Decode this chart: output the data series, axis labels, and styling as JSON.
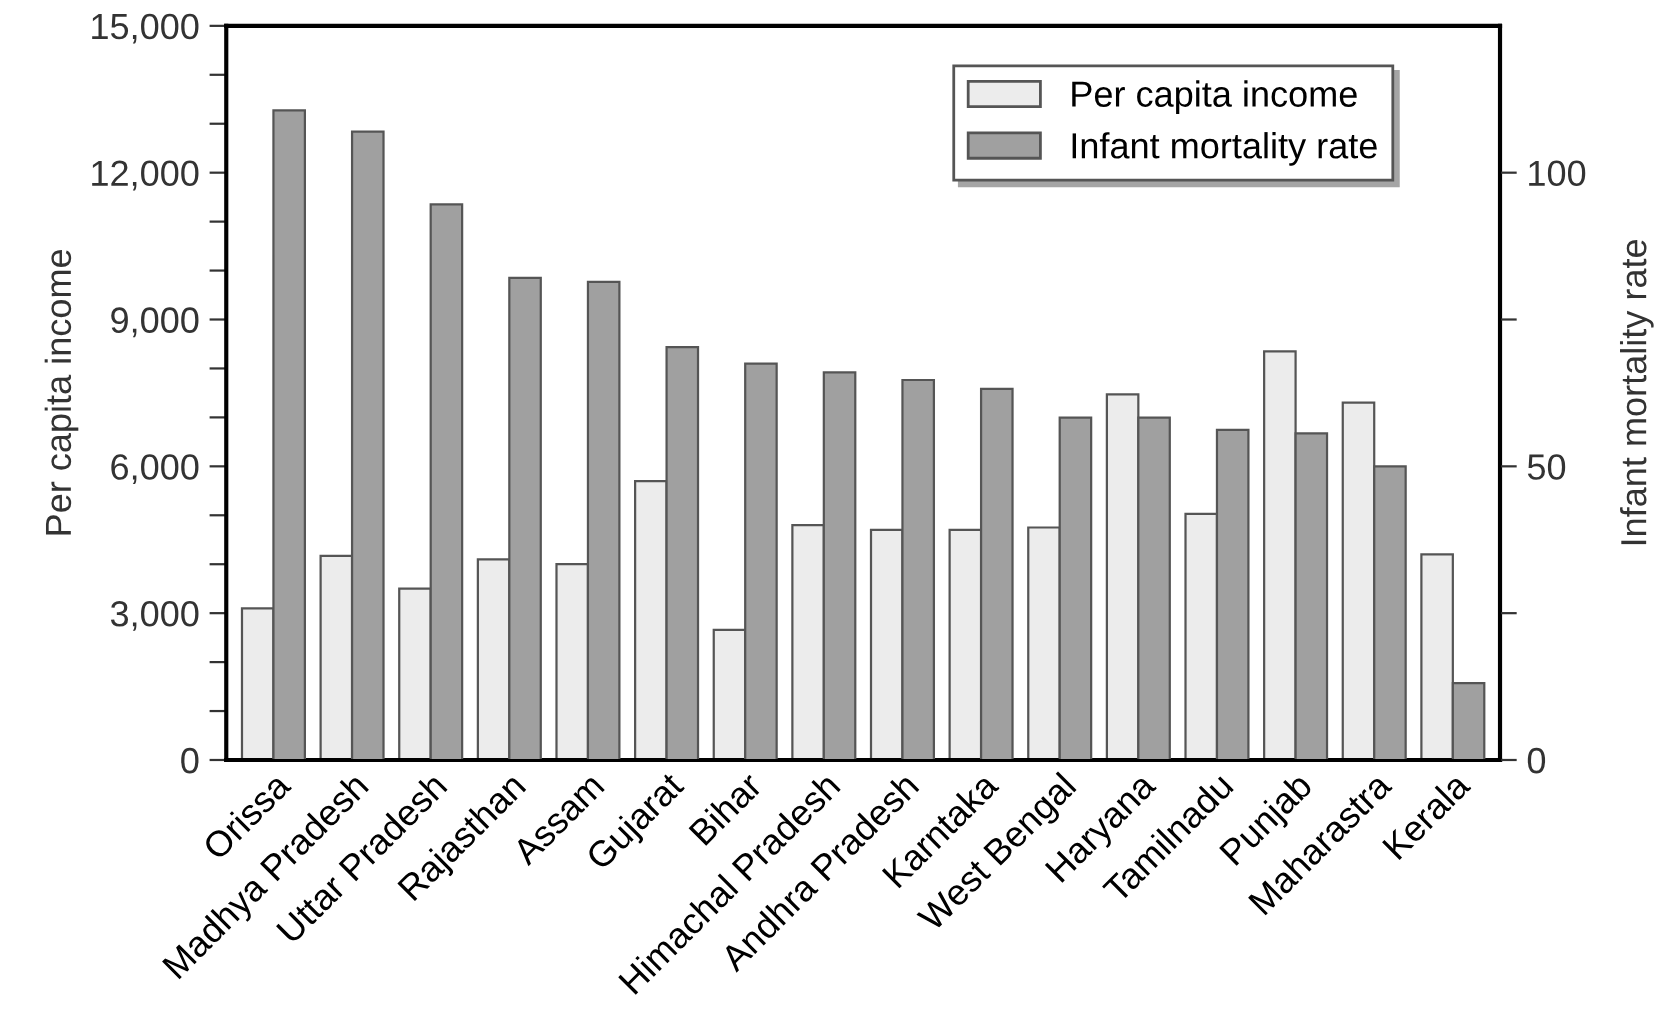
{
  "chart_data": {
    "type": "bar",
    "ylabel": "Per capita income",
    "y2label": "Infant mortality rate",
    "categories": [
      "Orissa",
      "Madhya Pradesh",
      "Uttar Pradesh",
      "Rajasthan",
      "Assam",
      "Gujarat",
      "Bihar",
      "Himachal Pradesh",
      "Andhra Pradesh",
      "Karntaka",
      "West Bengal",
      "Haryana",
      "Tamilnadu",
      "Punjab",
      "Maharastra",
      "Kerala"
    ],
    "series": [
      {
        "name": "Per capita income",
        "color": "#ececec",
        "values": [
          3100,
          4170,
          3500,
          4100,
          4000,
          5700,
          2660,
          4800,
          4700,
          4700,
          4750,
          7470,
          5030,
          8350,
          7300,
          4200
        ]
      },
      {
        "name": "Infant mortality rate",
        "color": "#a0a0a0",
        "axis": "y2",
        "values": [
          110.6,
          107,
          94.6,
          82.1,
          81.4,
          70.3,
          67.5,
          66,
          64.7,
          63.2,
          58.3,
          58.3,
          56.2,
          55.6,
          50,
          13.1
        ]
      }
    ],
    "ylim": [
      0,
      15000
    ],
    "yticks": [
      0,
      {
        "value": 1000,
        "label": null
      },
      {
        "value": 2000,
        "label": null
      },
      {
        "value": 3000,
        "label": "3,000"
      },
      {
        "value": 4000,
        "label": null
      },
      {
        "value": 5000,
        "label": null
      },
      {
        "value": 6000,
        "label": "6,000"
      },
      {
        "value": 7000,
        "label": null
      },
      {
        "value": 8000,
        "label": null
      },
      {
        "value": 9000,
        "label": "9,000"
      },
      {
        "value": 10000,
        "label": null
      },
      {
        "value": 11000,
        "label": null
      },
      {
        "value": 12000,
        "label": "12,000"
      },
      {
        "value": 13000,
        "label": null
      },
      {
        "value": 14000,
        "label": null
      },
      {
        "value": 15000,
        "label": "15,000"
      }
    ],
    "y2lim": [
      0,
      125
    ],
    "y2ticks": [
      0,
      {
        "value": 25,
        "label": null
      },
      50,
      {
        "value": 75,
        "label": null
      },
      100
    ],
    "legend": "top right",
    "grid": false
  }
}
